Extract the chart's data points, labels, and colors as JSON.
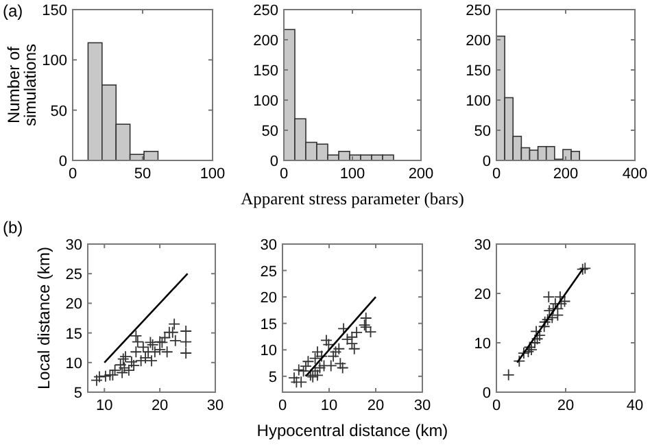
{
  "chart_data": [
    {
      "type": "histogram",
      "annotations": [
        "(a)"
      ],
      "ylabel": "Number of simulations",
      "bins": [
        11,
        21,
        31,
        41,
        51,
        61
      ],
      "values": [
        117,
        75,
        36,
        6,
        9
      ],
      "color": "#c8c8c8",
      "xlim": [
        0,
        100
      ],
      "xticks": [
        0,
        50,
        100
      ],
      "ylim": [
        0,
        150
      ],
      "yticks": [
        0,
        50,
        100,
        150
      ]
    },
    {
      "type": "histogram",
      "xlabel": "Apparent stress parameter (bars)",
      "bins": [
        0,
        16,
        32,
        48,
        64,
        80,
        96,
        112,
        128,
        144,
        160
      ],
      "values": [
        217,
        69,
        30,
        27,
        9,
        15,
        9,
        9,
        9,
        9
      ],
      "color": "#c8c8c8",
      "xlim": [
        0,
        200
      ],
      "xticks": [
        0,
        100,
        200
      ],
      "ylim": [
        0,
        250
      ],
      "yticks": [
        0,
        50,
        100,
        150,
        200,
        250
      ]
    },
    {
      "type": "histogram",
      "bins": [
        0,
        24,
        48,
        72,
        96,
        120,
        144,
        168,
        192,
        216,
        240
      ],
      "values": [
        206,
        104,
        40,
        21,
        17,
        23,
        23,
        2,
        18,
        15
      ],
      "color": "#c8c8c8",
      "xlim": [
        0,
        400
      ],
      "xticks": [
        0,
        200,
        400
      ],
      "ylim": [
        0,
        250
      ],
      "yticks": [
        0,
        50,
        100,
        150,
        200,
        250
      ]
    },
    {
      "type": "scatter",
      "annotations": [
        "(b)"
      ],
      "ylabel": "Local distance (km)",
      "xlim": [
        7,
        30
      ],
      "xticks": [
        10,
        20,
        30
      ],
      "ylim": [
        5,
        30
      ],
      "yticks": [
        5,
        10,
        15,
        20,
        25,
        30
      ],
      "series": [
        {
          "type": "scatter",
          "marker": "cross",
          "color": "#333333",
          "x": [
            8.6,
            9.1,
            10.2,
            11.5,
            13.2,
            13.6,
            13.4,
            13.8,
            14.4,
            15.3,
            15.7,
            15.7,
            16.0,
            16.6,
            17.4,
            17.9,
            18.3,
            18.7,
            18.5,
            19.1,
            20.0,
            20.4,
            20.9,
            21.7,
            22.3,
            22.6,
            22.8,
            21.3,
            24.7,
            24.7,
            24.7,
            20.0,
            17.0,
            14.9,
            12.9,
            11.9,
            11.0
          ],
          "values": [
            7.0,
            7.6,
            7.7,
            7.9,
            8.3,
            9.1,
            10.6,
            11.0,
            8.7,
            9.5,
            11.8,
            14.5,
            13.5,
            10.3,
            10.8,
            11.8,
            13.4,
            13.0,
            10.3,
            11.8,
            12.2,
            13.4,
            14.2,
            15.1,
            15.1,
            16.5,
            13.7,
            11.8,
            15.3,
            13.5,
            11.6,
            13.5,
            12.6,
            10.1,
            9.6,
            8.7,
            7.9
          ]
        },
        {
          "type": "line",
          "color": "#000000",
          "x": [
            10,
            25
          ],
          "values": [
            10,
            25
          ]
        }
      ]
    },
    {
      "type": "scatter",
      "xlabel": "Hypocentral distance (km)",
      "xlim": [
        0,
        30
      ],
      "xticks": [
        0,
        10,
        20,
        30
      ],
      "ylim": [
        2,
        30
      ],
      "yticks": [
        5,
        10,
        15,
        20,
        25,
        30
      ],
      "series": [
        {
          "type": "scatter",
          "marker": "cross",
          "color": "#333333",
          "x": [
            2.5,
            4,
            4.5,
            5,
            6,
            7,
            7.5,
            7.5,
            8.4,
            9.4,
            9.9,
            10.4,
            10.9,
            11.4,
            12.1,
            12.4,
            12.9,
            13.1,
            13.9,
            14.9,
            15.4,
            14.9,
            15.9,
            17.9,
            17.6,
            17.9,
            18.9,
            5.5,
            3.5,
            6.5,
            8.9,
            7,
            3,
            8
          ],
          "values": [
            4.7,
            3.9,
            6.0,
            6.9,
            5.2,
            6.0,
            5.2,
            9.6,
            8.8,
            11.8,
            11.0,
            7.0,
            8.8,
            9.6,
            10.2,
            7.4,
            6.6,
            14.0,
            12.0,
            12.4,
            10.2,
            11.2,
            13.3,
            16.0,
            14.7,
            14.3,
            13.4,
            7.8,
            6.2,
            4.9,
            7.0,
            8.4,
            3.9,
            6.6
          ]
        },
        {
          "type": "line",
          "color": "#000000",
          "x": [
            5,
            20
          ],
          "values": [
            5,
            20
          ]
        }
      ]
    },
    {
      "type": "scatter",
      "xlim": [
        0,
        40
      ],
      "xticks": [
        0,
        20,
        40
      ],
      "ylim": [
        0,
        30
      ],
      "yticks": [
        0,
        10,
        20,
        30
      ],
      "series": [
        {
          "type": "scatter",
          "marker": "cross",
          "color": "#333333",
          "x": [
            3.5,
            6.6,
            7.9,
            9.2,
            10.1,
            11.1,
            11.8,
            11.5,
            12.5,
            13.8,
            14.8,
            15.3,
            16.1,
            16.4,
            17.0,
            17.7,
            18.4,
            18.7,
            19.7,
            17.7,
            15.1,
            24.9,
            25.6,
            9.6,
            14
          ],
          "values": [
            3.5,
            6.3,
            7.9,
            8.2,
            8.6,
            10.0,
            10.8,
            12.3,
            11.5,
            13.3,
            14.7,
            16.5,
            15.1,
            16.9,
            17.9,
            16.9,
            19.3,
            17.9,
            18.4,
            15.6,
            19.3,
            24.9,
            25.1,
            9.1,
            14.2
          ]
        },
        {
          "type": "line",
          "color": "#000000",
          "x": [
            6,
            25
          ],
          "values": [
            6,
            25
          ]
        }
      ]
    }
  ]
}
